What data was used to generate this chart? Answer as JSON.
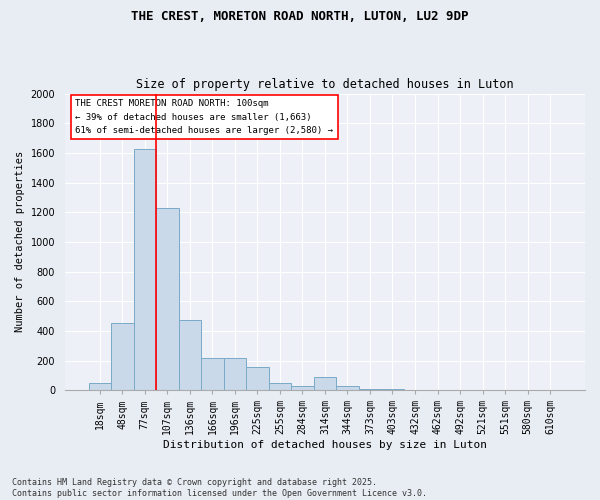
{
  "title1": "THE CREST, MORETON ROAD NORTH, LUTON, LU2 9DP",
  "title2": "Size of property relative to detached houses in Luton",
  "xlabel": "Distribution of detached houses by size in Luton",
  "ylabel": "Number of detached properties",
  "categories": [
    "18sqm",
    "48sqm",
    "77sqm",
    "107sqm",
    "136sqm",
    "166sqm",
    "196sqm",
    "225sqm",
    "255sqm",
    "284sqm",
    "314sqm",
    "344sqm",
    "373sqm",
    "403sqm",
    "432sqm",
    "462sqm",
    "492sqm",
    "521sqm",
    "551sqm",
    "580sqm",
    "610sqm"
  ],
  "values": [
    50,
    450,
    1625,
    1225,
    475,
    215,
    215,
    155,
    45,
    30,
    90,
    25,
    5,
    5,
    0,
    0,
    0,
    0,
    0,
    0,
    0
  ],
  "bar_color": "#c9d9ea",
  "bar_edge_color": "#7aaac8",
  "vline_color": "red",
  "vline_position": 2.5,
  "annotation_text": "THE CREST MORETON ROAD NORTH: 100sqm\n← 39% of detached houses are smaller (1,663)\n61% of semi-detached houses are larger (2,580) →",
  "annotation_box_color": "white",
  "annotation_box_edge": "red",
  "ylim": [
    0,
    2000
  ],
  "yticks": [
    0,
    200,
    400,
    600,
    800,
    1000,
    1200,
    1400,
    1600,
    1800,
    2000
  ],
  "footer": "Contains HM Land Registry data © Crown copyright and database right 2025.\nContains public sector information licensed under the Open Government Licence v3.0.",
  "background_color": "#e8edf4",
  "plot_bg_color": "#edf1f7",
  "grid_color": "#ffffff",
  "title1_fontsize": 9,
  "title2_fontsize": 8.5,
  "ylabel_fontsize": 7.5,
  "xlabel_fontsize": 8,
  "tick_fontsize": 7,
  "footer_fontsize": 6,
  "annotation_fontsize": 6.5
}
